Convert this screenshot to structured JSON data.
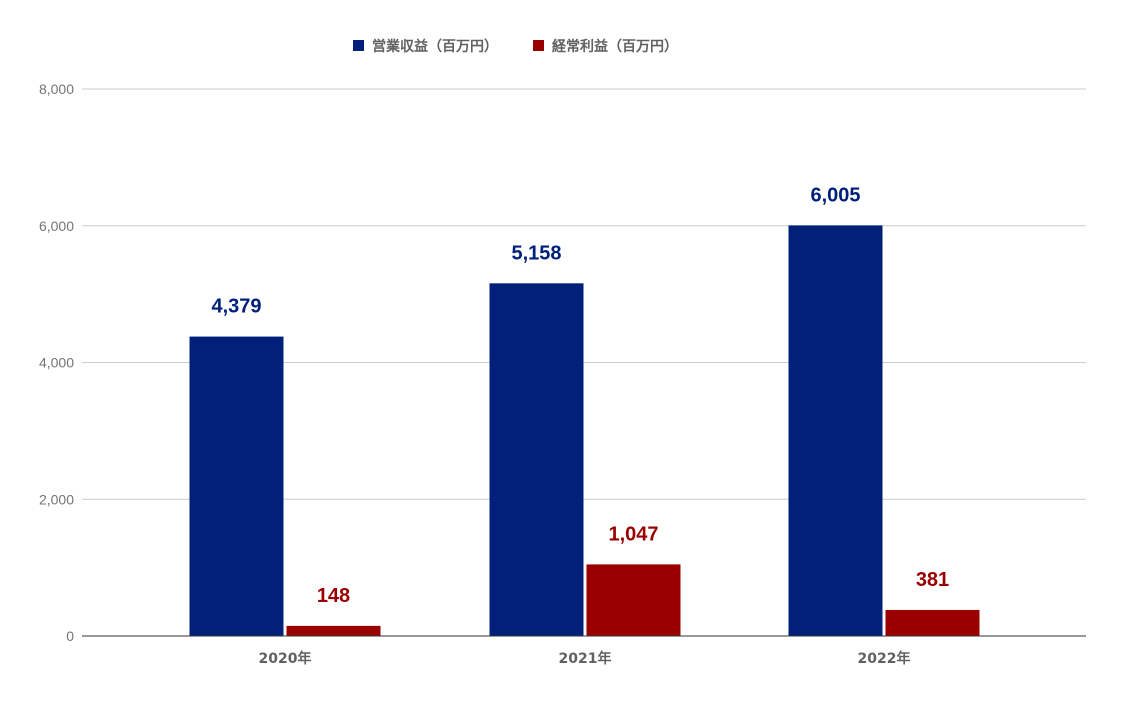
{
  "chart_data": {
    "type": "bar",
    "title": "",
    "xlabel": "",
    "ylabel": "",
    "categories": [
      "2020年",
      "2021年",
      "2022年"
    ],
    "series": [
      {
        "name": "営業収益（百万円）",
        "color": "#00207a",
        "values": [
          4379,
          5158,
          6005
        ],
        "labels": [
          "4,379",
          "5,158",
          "6,005"
        ]
      },
      {
        "name": "経常利益（百万円）",
        "color": "#9b0000",
        "values": [
          148,
          1047,
          381
        ],
        "labels": [
          "148",
          "1,047",
          "381"
        ]
      }
    ],
    "ylim": [
      0,
      8000
    ],
    "yticks": [
      0,
      2000,
      4000,
      6000,
      8000
    ],
    "ytick_labels": [
      "0",
      "2,000",
      "4,000",
      "6,000",
      "8,000"
    ],
    "grid": true,
    "legend_position": "top-center"
  }
}
